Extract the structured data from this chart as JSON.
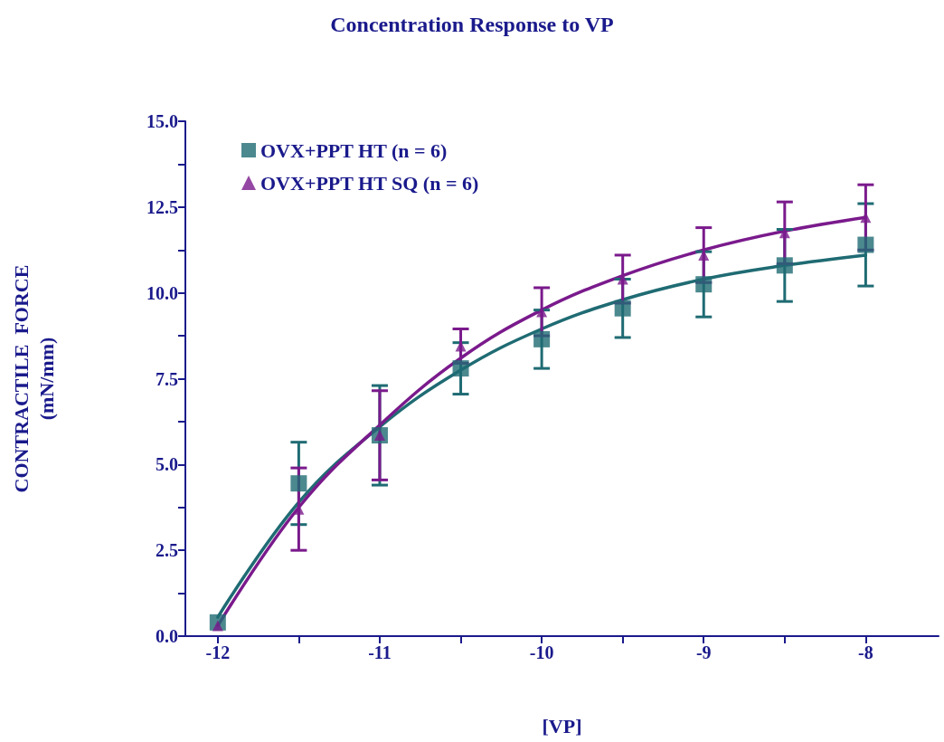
{
  "chart_data": {
    "type": "scatter",
    "title": "Concentration Response to VP",
    "xlabel": "[VP]",
    "ylabel": "CONTRACTILE  FORCE\n(mN/mm)",
    "xlim": [
      -12.2,
      -7.55
    ],
    "xticks": [
      -12,
      {
        "value": -11.5,
        "label": null
      },
      -11,
      {
        "value": -10.5,
        "label": null
      },
      -10,
      {
        "value": -9.5,
        "label": null
      },
      -9,
      {
        "value": -8.5,
        "label": null
      },
      -8
    ],
    "ylim": [
      0,
      15
    ],
    "yticks": [
      {
        "value": 0,
        "label": "0.0"
      },
      {
        "value": 1.25,
        "label": null
      },
      {
        "value": 2.5,
        "label": "2.5"
      },
      {
        "value": 3.75,
        "label": null
      },
      {
        "value": 5,
        "label": "5.0"
      },
      {
        "value": 6.25,
        "label": null
      },
      {
        "value": 7.5,
        "label": "7.5"
      },
      {
        "value": 8.75,
        "label": null
      },
      {
        "value": 10,
        "label": "10.0"
      },
      {
        "value": 11.25,
        "label": null
      },
      {
        "value": 12.5,
        "label": "12.5"
      },
      {
        "value": 13.75,
        "label": null
      },
      {
        "value": 15,
        "label": "15.0"
      }
    ],
    "legend": "top left",
    "grid": false,
    "series": [
      {
        "name": "OVX+PPT HT (n = 6)",
        "color": "#1f6b73",
        "marker": "square",
        "x": [
          -12,
          -11.5,
          -11,
          -10.5,
          -10,
          -9.5,
          -9,
          -8.5,
          -8
        ],
        "values": [
          0.4,
          4.45,
          5.85,
          7.8,
          8.65,
          9.55,
          10.25,
          10.8,
          11.4
        ],
        "errors": [
          null,
          1.2,
          1.45,
          0.75,
          0.85,
          0.85,
          0.95,
          1.05,
          1.2
        ]
      },
      {
        "name": "OVX+PPT HT SQ (n = 6)",
        "color": "#7a1a8c",
        "marker": "triangle",
        "x": [
          -12,
          -11.5,
          -11,
          -10.5,
          -10,
          -9.5,
          -9,
          -8.5,
          -8
        ],
        "values": [
          0.3,
          3.7,
          5.85,
          8.45,
          9.45,
          10.4,
          11.1,
          11.75,
          12.2
        ],
        "errors": [
          null,
          1.2,
          1.3,
          0.5,
          0.7,
          0.7,
          0.8,
          0.9,
          0.95
        ]
      },
      {
        "type": "line",
        "color": "#1f6b73",
        "marker": "none",
        "x": [
          -12,
          -11.5,
          -11,
          -10.5,
          -10,
          -9.5,
          -9,
          -8.5,
          -8
        ],
        "values": [
          0.55,
          3.9,
          6.1,
          7.75,
          8.95,
          9.8,
          10.4,
          10.8,
          11.1
        ]
      },
      {
        "type": "line",
        "color": "#7a1a8c",
        "marker": "none",
        "x": [
          -12,
          -11.5,
          -11,
          -10.5,
          -10,
          -9.5,
          -9,
          -8.5,
          -8
        ],
        "values": [
          0.3,
          3.75,
          6.15,
          8.1,
          9.5,
          10.5,
          11.25,
          11.8,
          12.2
        ]
      }
    ]
  }
}
